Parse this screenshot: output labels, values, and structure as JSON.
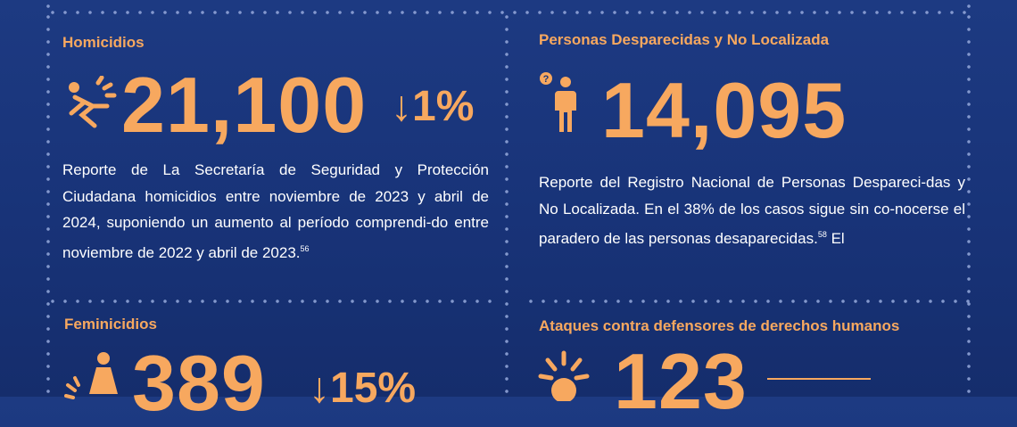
{
  "homicidios": {
    "label": "Homicidios",
    "value": "21,100",
    "change": "↓1%",
    "text": "Reporte de La Secretaría de Seguridad y Protección Ciudadana homicidios entre noviembre de 2023 y abril de 2024, suponiendo un aumento al período comprendi-do entre noviembre de 2022 y abril de 2023.",
    "note": "56",
    "icon": "falling-person-icon"
  },
  "desaparecidas": {
    "label": "Personas Desparecidas y No Localizada",
    "value": "14,095",
    "text": "Reporte del Registro Nacional de Personas Despareci-das y No Localizada. En el 38% de los casos sigue sin co-nocerse el paradero de las personas desaparecidas.",
    "note": "58",
    "trailing": "El",
    "icon": "missing-person-icon"
  },
  "feminicidios": {
    "label": "Feminicidios",
    "value": "389",
    "change": "↓15%",
    "icon": "woman-alert-icon"
  },
  "defensores": {
    "label": "Ataques contra defensores de derechos humanos",
    "value": "123",
    "icon": "impact-icon"
  },
  "colors": {
    "accent": "#f7a85f",
    "background": "#1a3679",
    "text": "#ffffff",
    "dots": "#8fa3d6"
  }
}
